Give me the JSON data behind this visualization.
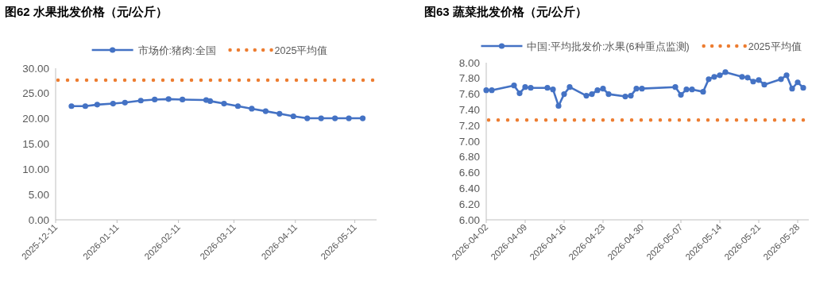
{
  "chart_data": [
    {
      "type": "line",
      "title": "图62 水果批发价格（元/公斤）",
      "marker": "circle",
      "legend": "top",
      "xlim": [
        "2025-12-11",
        "2026-05-22"
      ],
      "xticks": [
        "2025-12-11",
        "2026-01-11",
        "2026-02-11",
        "2026-03-11",
        "2026-04-11",
        "2026-05-11"
      ],
      "ylim": [
        0,
        30
      ],
      "yticks": [
        {
          "value": 0,
          "label": "0.00"
        },
        {
          "value": 5,
          "label": "5.00"
        },
        {
          "value": 10,
          "label": "10.00"
        },
        {
          "value": 15,
          "label": "15.00"
        },
        {
          "value": 20,
          "label": "20.00"
        },
        {
          "value": 25,
          "label": "25.00"
        },
        {
          "value": 30,
          "label": "30.00"
        }
      ],
      "series": [
        {
          "name": "市场价:猪肉:全国",
          "color": "#4472c4",
          "x": [
            "2025-12-19",
            "2025-12-26",
            "2026-01-01",
            "2026-01-09",
            "2026-01-15",
            "2026-01-23",
            "2026-01-30",
            "2026-02-06",
            "2026-02-13",
            "2026-02-25",
            "2026-02-27",
            "2026-03-06",
            "2026-03-13",
            "2026-03-20",
            "2026-03-27",
            "2026-04-03",
            "2026-04-10",
            "2026-04-17",
            "2026-04-24",
            "2026-05-01",
            "2026-05-08",
            "2026-05-15"
          ],
          "values": [
            22.5,
            22.5,
            22.8,
            23.0,
            23.2,
            23.6,
            23.8,
            23.9,
            23.8,
            23.7,
            23.5,
            23.0,
            22.5,
            22.0,
            21.5,
            21.0,
            20.5,
            20.1,
            20.1,
            20.1,
            20.1,
            20.1
          ]
        }
      ],
      "ref_lines": [
        {
          "axis": "y",
          "value": 27.65,
          "label": "2025平均值",
          "color": "#ed7d31",
          "line_style": "dotted"
        }
      ]
    },
    {
      "type": "line",
      "title": "图63 蔬菜批发价格（元/公斤）",
      "marker": "circle",
      "legend": "top",
      "xlim": [
        "2026-04-02",
        "2026-05-30"
      ],
      "xticks": [
        "2026-04-02",
        "2026-04-09",
        "2026-04-16",
        "2026-04-23",
        "2026-04-30",
        "2026-05-07",
        "2026-05-14",
        "2026-05-21",
        "2026-05-28"
      ],
      "ylim": [
        6,
        8
      ],
      "yticks": [
        {
          "value": 6,
          "label": "6.00"
        },
        {
          "value": 6.2,
          "label": "6.20"
        },
        {
          "value": 6.4,
          "label": "6.40"
        },
        {
          "value": 6.6,
          "label": "6.60"
        },
        {
          "value": 6.8,
          "label": "6.80"
        },
        {
          "value": 7,
          "label": "7.00"
        },
        {
          "value": 7.2,
          "label": "7.20"
        },
        {
          "value": 7.4,
          "label": "7.40"
        },
        {
          "value": 7.6,
          "label": "7.60"
        },
        {
          "value": 7.8,
          "label": "7.80"
        },
        {
          "value": 8,
          "label": "8.00"
        }
      ],
      "series": [
        {
          "name": "中国:平均批发价:水果(6种重点监测)",
          "color": "#4472c4",
          "x": [
            "2026-04-02",
            "2026-04-03",
            "2026-04-07",
            "2026-04-08",
            "2026-04-09",
            "2026-04-10",
            "2026-04-13",
            "2026-04-14",
            "2026-04-15",
            "2026-04-16",
            "2026-04-17",
            "2026-04-20",
            "2026-04-21",
            "2026-04-22",
            "2026-04-23",
            "2026-04-24",
            "2026-04-27",
            "2026-04-28",
            "2026-04-29",
            "2026-04-30",
            "2026-05-06",
            "2026-05-07",
            "2026-05-08",
            "2026-05-09",
            "2026-05-11",
            "2026-05-12",
            "2026-05-13",
            "2026-05-14",
            "2026-05-15",
            "2026-05-18",
            "2026-05-19",
            "2026-05-20",
            "2026-05-21",
            "2026-05-22",
            "2026-05-25",
            "2026-05-26",
            "2026-05-27",
            "2026-05-28",
            "2026-05-29"
          ],
          "values": [
            7.65,
            7.65,
            7.71,
            7.61,
            7.69,
            7.68,
            7.68,
            7.66,
            7.45,
            7.6,
            7.69,
            7.58,
            7.6,
            7.65,
            7.67,
            7.6,
            7.57,
            7.58,
            7.67,
            7.67,
            7.69,
            7.59,
            7.66,
            7.66,
            7.63,
            7.79,
            7.82,
            7.84,
            7.88,
            7.82,
            7.81,
            7.76,
            7.78,
            7.72,
            7.79,
            7.84,
            7.67,
            7.75,
            7.68
          ]
        }
      ],
      "ref_lines": [
        {
          "axis": "y",
          "value": 7.27,
          "label": "2025平均值",
          "color": "#ed7d31",
          "line_style": "dotted"
        }
      ]
    }
  ]
}
